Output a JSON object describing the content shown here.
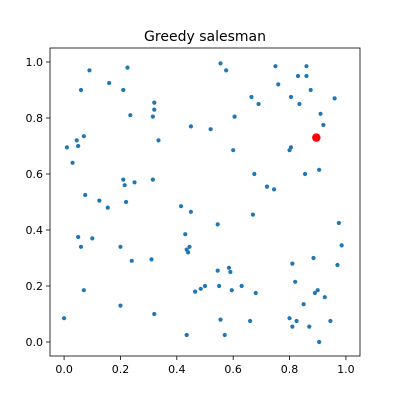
{
  "chart_data": {
    "type": "scatter",
    "title": "Greedy salesman",
    "xlabel": "",
    "ylabel": "",
    "xlim": [
      -0.05,
      1.05
    ],
    "ylim": [
      -0.05,
      1.05
    ],
    "xticks": [
      "0.0",
      "0.2",
      "0.4",
      "0.6",
      "0.8",
      "1.0"
    ],
    "yticks": [
      "0.0",
      "0.2",
      "0.4",
      "0.6",
      "0.8",
      "1.0"
    ],
    "grid": false,
    "legend": "none",
    "point_color": "#1f77b4",
    "highlight_color": "#ff0000",
    "highlight_point": {
      "x": 0.895,
      "y": 0.73
    },
    "points": [
      {
        "x": 0.0,
        "y": 0.085
      },
      {
        "x": 0.01,
        "y": 0.695
      },
      {
        "x": 0.03,
        "y": 0.64
      },
      {
        "x": 0.045,
        "y": 0.72
      },
      {
        "x": 0.05,
        "y": 0.7
      },
      {
        "x": 0.05,
        "y": 0.375
      },
      {
        "x": 0.06,
        "y": 0.9
      },
      {
        "x": 0.06,
        "y": 0.34
      },
      {
        "x": 0.07,
        "y": 0.735
      },
      {
        "x": 0.07,
        "y": 0.185
      },
      {
        "x": 0.075,
        "y": 0.525
      },
      {
        "x": 0.09,
        "y": 0.97
      },
      {
        "x": 0.1,
        "y": 0.37
      },
      {
        "x": 0.125,
        "y": 0.505
      },
      {
        "x": 0.155,
        "y": 0.48
      },
      {
        "x": 0.16,
        "y": 0.925
      },
      {
        "x": 0.2,
        "y": 0.13
      },
      {
        "x": 0.2,
        "y": 0.34
      },
      {
        "x": 0.21,
        "y": 0.9
      },
      {
        "x": 0.21,
        "y": 0.58
      },
      {
        "x": 0.215,
        "y": 0.56
      },
      {
        "x": 0.22,
        "y": 0.5
      },
      {
        "x": 0.225,
        "y": 0.98
      },
      {
        "x": 0.235,
        "y": 0.81
      },
      {
        "x": 0.24,
        "y": 0.29
      },
      {
        "x": 0.25,
        "y": 0.57
      },
      {
        "x": 0.31,
        "y": 0.295
      },
      {
        "x": 0.315,
        "y": 0.58
      },
      {
        "x": 0.315,
        "y": 0.805
      },
      {
        "x": 0.32,
        "y": 0.855
      },
      {
        "x": 0.32,
        "y": 0.83
      },
      {
        "x": 0.32,
        "y": 0.1
      },
      {
        "x": 0.335,
        "y": 0.72
      },
      {
        "x": 0.415,
        "y": 0.485
      },
      {
        "x": 0.43,
        "y": 0.385
      },
      {
        "x": 0.435,
        "y": 0.33
      },
      {
        "x": 0.435,
        "y": 0.025
      },
      {
        "x": 0.44,
        "y": 0.32
      },
      {
        "x": 0.445,
        "y": 0.34
      },
      {
        "x": 0.45,
        "y": 0.465
      },
      {
        "x": 0.45,
        "y": 0.77
      },
      {
        "x": 0.465,
        "y": 0.18
      },
      {
        "x": 0.485,
        "y": 0.19
      },
      {
        "x": 0.5,
        "y": 0.2
      },
      {
        "x": 0.52,
        "y": 0.76
      },
      {
        "x": 0.545,
        "y": 0.42
      },
      {
        "x": 0.545,
        "y": 0.255
      },
      {
        "x": 0.55,
        "y": 0.2
      },
      {
        "x": 0.555,
        "y": 0.995
      },
      {
        "x": 0.555,
        "y": 0.08
      },
      {
        "x": 0.57,
        "y": 0.025
      },
      {
        "x": 0.575,
        "y": 0.97
      },
      {
        "x": 0.585,
        "y": 0.265
      },
      {
        "x": 0.59,
        "y": 0.25
      },
      {
        "x": 0.595,
        "y": 0.185
      },
      {
        "x": 0.6,
        "y": 0.685
      },
      {
        "x": 0.605,
        "y": 0.805
      },
      {
        "x": 0.63,
        "y": 0.2
      },
      {
        "x": 0.66,
        "y": 0.075
      },
      {
        "x": 0.665,
        "y": 0.875
      },
      {
        "x": 0.67,
        "y": 0.455
      },
      {
        "x": 0.675,
        "y": 0.6
      },
      {
        "x": 0.68,
        "y": 0.175
      },
      {
        "x": 0.69,
        "y": 0.85
      },
      {
        "x": 0.72,
        "y": 0.555
      },
      {
        "x": 0.745,
        "y": 0.545
      },
      {
        "x": 0.75,
        "y": 0.985
      },
      {
        "x": 0.76,
        "y": 0.92
      },
      {
        "x": 0.8,
        "y": 0.085
      },
      {
        "x": 0.8,
        "y": 0.685
      },
      {
        "x": 0.805,
        "y": 0.695
      },
      {
        "x": 0.805,
        "y": 0.875
      },
      {
        "x": 0.81,
        "y": 0.28
      },
      {
        "x": 0.81,
        "y": 0.055
      },
      {
        "x": 0.82,
        "y": 0.215
      },
      {
        "x": 0.825,
        "y": 0.075
      },
      {
        "x": 0.83,
        "y": 0.95
      },
      {
        "x": 0.835,
        "y": 0.85
      },
      {
        "x": 0.85,
        "y": 0.135
      },
      {
        "x": 0.855,
        "y": 0.6
      },
      {
        "x": 0.86,
        "y": 0.95
      },
      {
        "x": 0.86,
        "y": 0.985
      },
      {
        "x": 0.87,
        "y": 0.055
      },
      {
        "x": 0.875,
        "y": 0.9
      },
      {
        "x": 0.885,
        "y": 0.3
      },
      {
        "x": 0.89,
        "y": 0.175
      },
      {
        "x": 0.9,
        "y": 0.185
      },
      {
        "x": 0.905,
        "y": 0.615
      },
      {
        "x": 0.905,
        "y": 0.0
      },
      {
        "x": 0.91,
        "y": 0.815
      },
      {
        "x": 0.92,
        "y": 0.775
      },
      {
        "x": 0.925,
        "y": 0.16
      },
      {
        "x": 0.945,
        "y": 0.075
      },
      {
        "x": 0.96,
        "y": 0.87
      },
      {
        "x": 0.97,
        "y": 0.275
      },
      {
        "x": 0.975,
        "y": 0.425
      },
      {
        "x": 0.985,
        "y": 0.345
      }
    ]
  }
}
